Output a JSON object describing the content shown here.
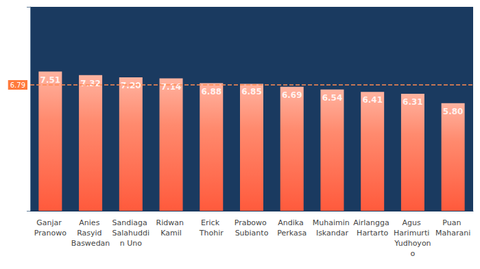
{
  "chart_data": {
    "type": "bar",
    "categories": [
      "Ganjar Pranowo",
      "Anies Rasyid Baswedan",
      "Sandiaga Salahuddin Uno",
      "Ridwan Kamil",
      "Erick Thohir",
      "Prabowo Subianto",
      "Andika Perkasa",
      "Muhaimin Iskandar",
      "Airlangga Hartarto",
      "Agus Harimurti Yudhoyono",
      "Puan Maharani"
    ],
    "values": [
      7.51,
      7.32,
      7.2,
      7.14,
      6.88,
      6.85,
      6.69,
      6.54,
      6.41,
      6.31,
      5.8
    ],
    "value_labels": [
      "7.51",
      "7.32",
      "7.20",
      "7.14",
      "6.88",
      "6.85",
      "6.69",
      "6.54",
      "6.41",
      "6.31",
      "5.80"
    ],
    "color": "#ff5a3c",
    "reference_line": 6.79,
    "ylim": [
      0,
      11
    ],
    "yticks": [
      0,
      11
    ],
    "grid": false,
    "data_labels": true,
    "tick_labels": "x"
  }
}
